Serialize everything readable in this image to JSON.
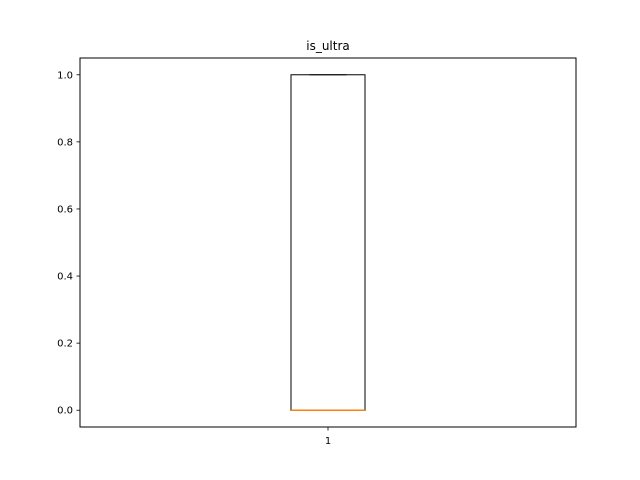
{
  "chart_data": {
    "type": "box",
    "title": "is_ultra",
    "xlabel": "",
    "ylabel": "",
    "categories": [
      "1"
    ],
    "ylim": [
      -0.05,
      1.05
    ],
    "yticks": [
      0.0,
      0.2,
      0.4,
      0.6,
      0.8,
      1.0
    ],
    "ytick_labels": [
      "0.0",
      "0.2",
      "0.4",
      "0.6",
      "0.8",
      "1.0"
    ],
    "grid": false,
    "boxes": [
      {
        "category": "1",
        "whisker_low": 0,
        "q1": 0,
        "median": 0,
        "q3": 1,
        "whisker_high": 1
      }
    ],
    "colors": {
      "box": "#000000",
      "median": "#ff7f0e"
    }
  }
}
